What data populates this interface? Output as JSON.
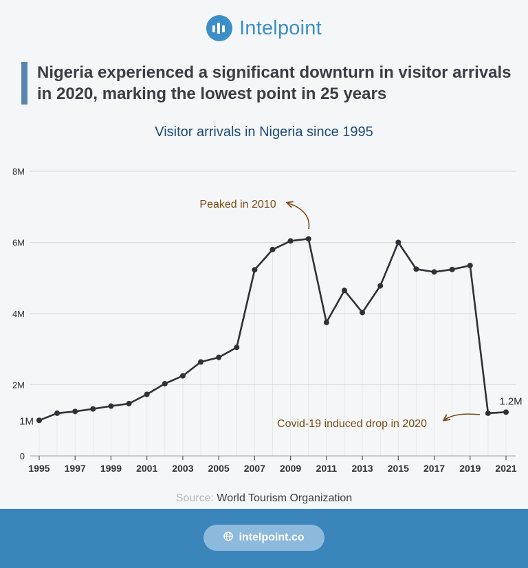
{
  "brand": {
    "name": "Intelpoint",
    "url": "intelpoint.co"
  },
  "headline": "Nigeria experienced a significant downturn in visitor arrivals in 2020, marking the lowest point in 25 years",
  "source": {
    "prefix": "Source:",
    "text": "World Tourism Organization"
  },
  "colors": {
    "accent": "#3c8fc6",
    "line": "#2f3136",
    "annotation": "#7a4a12",
    "footer": "#3a86bb"
  },
  "chart_data": {
    "type": "line",
    "title": "Visitor arrivals in Nigeria since 1995",
    "xlabel": "",
    "ylabel": "",
    "x": [
      1995,
      1996,
      1997,
      1998,
      1999,
      2000,
      2001,
      2002,
      2003,
      2004,
      2005,
      2006,
      2007,
      2008,
      2009,
      2010,
      2011,
      2012,
      2013,
      2014,
      2015,
      2016,
      2017,
      2018,
      2019,
      2020,
      2021
    ],
    "values": [
      1.0,
      1.2,
      1.25,
      1.32,
      1.4,
      1.47,
      1.73,
      2.03,
      2.25,
      2.64,
      2.77,
      3.05,
      5.23,
      5.8,
      6.04,
      6.1,
      3.75,
      4.65,
      4.03,
      4.78,
      6.0,
      5.25,
      5.17,
      5.24,
      5.35,
      1.2,
      1.23
    ],
    "ylim": [
      0,
      8
    ],
    "y_ticks": [
      {
        "value": 0,
        "label": "0"
      },
      {
        "value": 2,
        "label": "2M"
      },
      {
        "value": 4,
        "label": "4M"
      },
      {
        "value": 6,
        "label": "6M"
      },
      {
        "value": 8,
        "label": "8M"
      }
    ],
    "x_tick_labels": [
      "1995",
      "1997",
      "1999",
      "2001",
      "2003",
      "2005",
      "2007",
      "2009",
      "2011",
      "2013",
      "2015",
      "2017",
      "2019",
      "2021"
    ],
    "grid": true,
    "data_labels": [
      {
        "x": 1995,
        "label": "1M"
      },
      {
        "x": 2021,
        "label": "1.2M"
      }
    ],
    "annotations": [
      {
        "text": "Peaked in 2010",
        "target_x": 2010
      },
      {
        "text": "Covid-19 induced drop in 2020",
        "target_x": 2020
      }
    ]
  }
}
